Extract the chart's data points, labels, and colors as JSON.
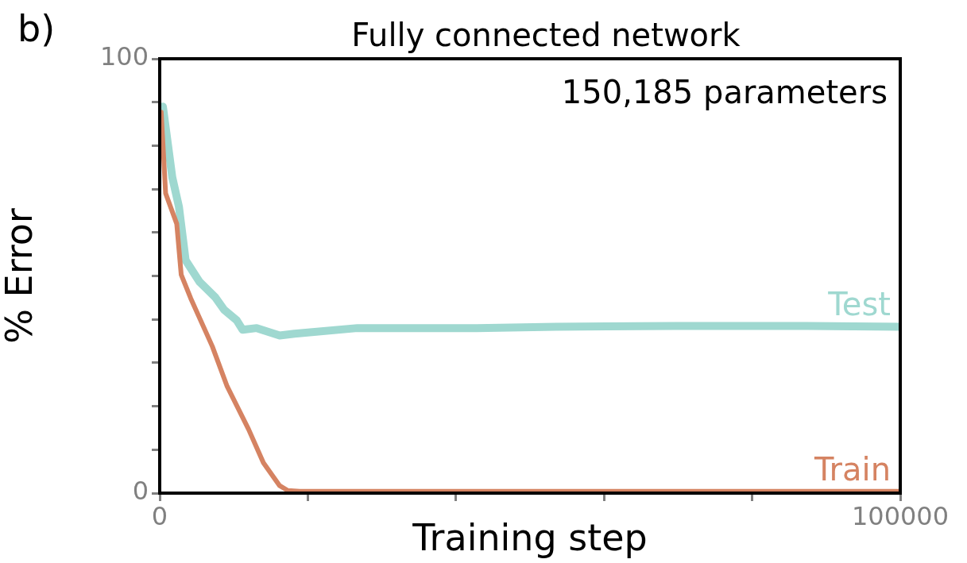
{
  "chart_data": {
    "type": "line",
    "title": "Fully connected network",
    "xlabel": "Training step",
    "ylabel": "% Error",
    "annotations": [
      "b)",
      "150,185 parameters"
    ],
    "xlim": [
      0,
      100000
    ],
    "ylim": [
      0,
      100
    ],
    "xticks": [
      0,
      {
        "value": 20000,
        "label": null
      },
      {
        "value": 40000,
        "label": null
      },
      {
        "value": 60000,
        "label": null
      },
      {
        "value": 80000,
        "label": null
      },
      100000
    ],
    "yticks": [
      0,
      {
        "value": 10,
        "label": null
      },
      {
        "value": 20,
        "label": null
      },
      {
        "value": 30,
        "label": null
      },
      {
        "value": 40,
        "label": null
      },
      {
        "value": 50,
        "label": null
      },
      {
        "value": 60,
        "label": null
      },
      {
        "value": 70,
        "label": null
      },
      {
        "value": 80,
        "label": null
      },
      {
        "value": 90,
        "label": null
      },
      100
    ],
    "grid": false,
    "legend": false,
    "marker": "none",
    "line_style": "solid",
    "series": [
      {
        "name": "Test",
        "color": "#9fd8d0",
        "x": [
          430,
          1700,
          2600,
          3500,
          5400,
          7500,
          8700,
          10400,
          11200,
          13100,
          16200,
          18200,
          26700,
          42800,
          53500,
          69600,
          85700,
          100000
        ],
        "values": [
          89,
          72.7,
          65.9,
          53.6,
          48.6,
          45.1,
          42.2,
          39.8,
          37.6,
          38,
          36.3,
          36.7,
          38,
          38,
          38.3,
          38.5,
          38.5,
          38.3
        ]
      },
      {
        "name": "Train",
        "color": "#d58362",
        "x": [
          200,
          800,
          2300,
          2900,
          4200,
          7100,
          9100,
          12000,
          14000,
          16200,
          17300,
          18900,
          40000,
          70000,
          100000
        ],
        "values": [
          87.7,
          69,
          62,
          50.3,
          44.8,
          33.8,
          24.6,
          14.7,
          7,
          1.7,
          0.6,
          0.4,
          0.4,
          0.4,
          0.4
        ]
      }
    ]
  }
}
